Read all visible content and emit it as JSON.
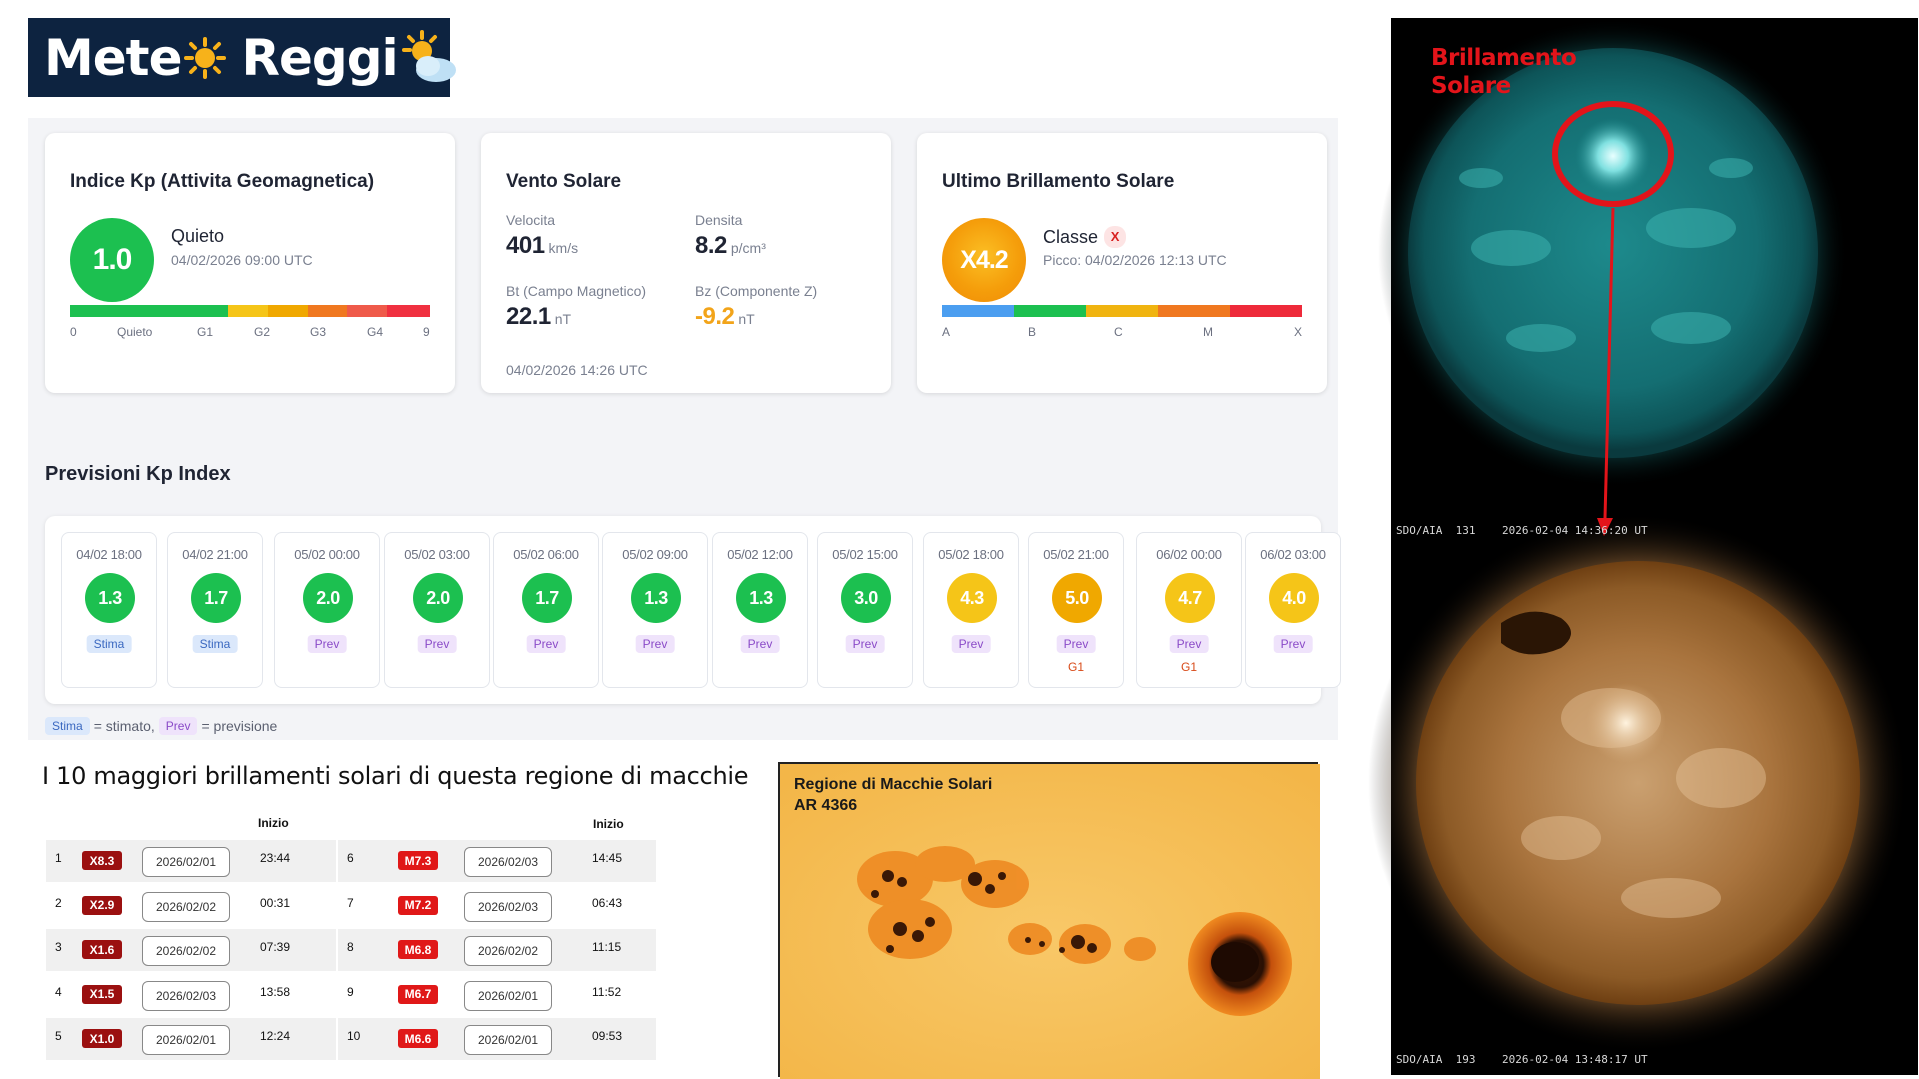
{
  "logo": {
    "part1": "Mete",
    "part2": "Reggi"
  },
  "kp_card": {
    "title": "Indice Kp (Attivita Geomagnetica)",
    "value": "1.0",
    "status": "Quieto",
    "timestamp": "04/02/2026 09:00 UTC",
    "ticks": [
      "0",
      "Quieto",
      "G1",
      "G2",
      "G3",
      "G4",
      "9"
    ]
  },
  "wind_card": {
    "title": "Vento Solare",
    "speed_label": "Velocita",
    "speed_value": "401",
    "speed_unit": "km/s",
    "density_label": "Densita",
    "density_value": "8.2",
    "density_unit": "p/cm³",
    "bt_label": "Bt (Campo Magnetico)",
    "bt_value": "22.1",
    "bt_unit": "nT",
    "bz_label": "Bz (Componente Z)",
    "bz_value": "-9.2",
    "bz_unit": "nT",
    "timestamp": "04/02/2026 14:26 UTC"
  },
  "flare_card": {
    "title": "Ultimo Brillamento Solare",
    "value": "X4.2",
    "class_label": "Classe",
    "class_badge": "X",
    "peak": "Picco: 04/02/2026 12:13 UTC",
    "ticks": [
      "A",
      "B",
      "C",
      "M",
      "X"
    ]
  },
  "forecast": {
    "title": "Previsioni Kp Index",
    "items": [
      {
        "date": "04/02 18:00",
        "value": "1.3",
        "tag": "Stima",
        "g": ""
      },
      {
        "date": "04/02 21:00",
        "value": "1.7",
        "tag": "Stima",
        "g": ""
      },
      {
        "date": "05/02 00:00",
        "value": "2.0",
        "tag": "Prev",
        "g": ""
      },
      {
        "date": "05/02 03:00",
        "value": "2.0",
        "tag": "Prev",
        "g": ""
      },
      {
        "date": "05/02 06:00",
        "value": "1.7",
        "tag": "Prev",
        "g": ""
      },
      {
        "date": "05/02 09:00",
        "value": "1.3",
        "tag": "Prev",
        "g": ""
      },
      {
        "date": "05/02 12:00",
        "value": "1.3",
        "tag": "Prev",
        "g": ""
      },
      {
        "date": "05/02 15:00",
        "value": "3.0",
        "tag": "Prev",
        "g": ""
      },
      {
        "date": "05/02 18:00",
        "value": "4.3",
        "tag": "Prev",
        "g": ""
      },
      {
        "date": "05/02 21:00",
        "value": "5.0",
        "tag": "Prev",
        "g": "G1"
      },
      {
        "date": "06/02 00:00",
        "value": "4.7",
        "tag": "Prev",
        "g": "G1"
      },
      {
        "date": "06/02 03:00",
        "value": "4.0",
        "tag": "Prev",
        "g": ""
      }
    ],
    "legend": {
      "stima": "Stima",
      "stima_text": "= stimato,",
      "prev": "Prev",
      "prev_text": "= previsione"
    }
  },
  "flares_table": {
    "title": "I 10 maggiori brillamenti solari di questa regione di macchie",
    "header_start": "Inizio",
    "rows": [
      {
        "n": "1",
        "cls": "X8.3",
        "date": "2026/02/01",
        "time": "23:44"
      },
      {
        "n": "2",
        "cls": "X2.9",
        "date": "2026/02/02",
        "time": "00:31"
      },
      {
        "n": "3",
        "cls": "X1.6",
        "date": "2026/02/02",
        "time": "07:39"
      },
      {
        "n": "4",
        "cls": "X1.5",
        "date": "2026/02/03",
        "time": "13:58"
      },
      {
        "n": "5",
        "cls": "X1.0",
        "date": "2026/02/01",
        "time": "12:24"
      },
      {
        "n": "6",
        "cls": "M7.3",
        "date": "2026/02/03",
        "time": "14:45"
      },
      {
        "n": "7",
        "cls": "M7.2",
        "date": "2026/02/03",
        "time": "06:43"
      },
      {
        "n": "8",
        "cls": "M6.8",
        "date": "2026/02/02",
        "time": "11:15"
      },
      {
        "n": "9",
        "cls": "M6.7",
        "date": "2026/02/01",
        "time": "11:52"
      },
      {
        "n": "10",
        "cls": "M6.6",
        "date": "2026/02/01",
        "time": "09:53"
      }
    ]
  },
  "sunspot": {
    "title_line1": "Regione di Macchie Solari",
    "title_line2": "AR 4366"
  },
  "sdo": {
    "title_line1": "Brillamento",
    "title_line2": "Solare",
    "caption_top": "SDO/AIA  131    2026-02-04 14:36:20 UT",
    "caption_bottom": "SDO/AIA  193    2026-02-04 13:48:17 UT"
  },
  "colors": {
    "kp_green": "#1cc050",
    "flare_orange": "#f59e0b",
    "bz_negative": "#f2a41a",
    "flare_red": "#e3141a"
  }
}
